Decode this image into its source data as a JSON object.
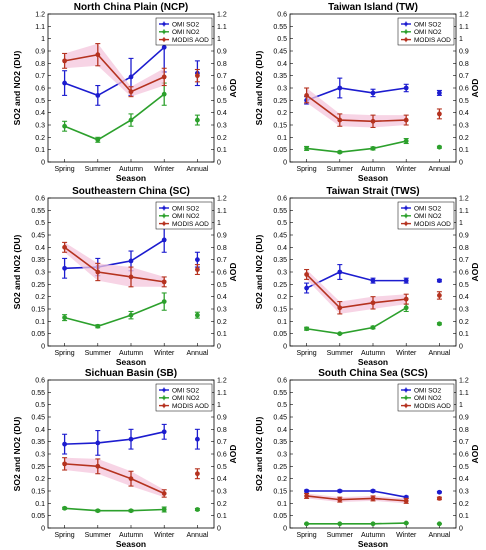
{
  "colors": {
    "so2": "#1c1ccf",
    "no2": "#2ca02c",
    "aod": "#b5321f",
    "aod_shade": "#f4c6dc"
  },
  "chart_data": [
    {
      "type": "line",
      "title": "North China Plain (NCP)",
      "xlabel": "Season",
      "ylabel": "SO2 and NO2 (DU)",
      "y2label": "AOD",
      "categories": [
        "Spring",
        "Summer",
        "Autumn",
        "Winter",
        "Annual"
      ],
      "ylim": [
        0,
        1.2
      ],
      "yticks": [
        "0",
        "0.1",
        "0.2",
        "0.3",
        "0.4",
        "0.5",
        "0.6",
        "0.7",
        "0.8",
        "0.9",
        "1",
        "1.1",
        "1.2"
      ],
      "y2lim": [
        0,
        1.2
      ],
      "y2ticks": [
        "0",
        "0.1",
        "0.2",
        "0.3",
        "0.4",
        "0.5",
        "0.6",
        "0.7",
        "0.8",
        "0.9",
        "1",
        "1.1",
        "1.2"
      ],
      "legend_position": "top-right",
      "series": [
        {
          "name": "OMI SO2",
          "color_key": "so2",
          "axis": "left",
          "values": [
            0.64,
            0.54,
            0.69,
            0.93,
            0.72
          ],
          "errors": [
            0.1,
            0.08,
            0.15,
            0.2,
            0.1
          ]
        },
        {
          "name": "OMI NO2",
          "color_key": "no2",
          "axis": "left",
          "values": [
            0.29,
            0.18,
            0.34,
            0.55,
            0.34
          ],
          "errors": [
            0.04,
            0.02,
            0.05,
            0.09,
            0.04
          ]
        },
        {
          "name": "MODIS AOD",
          "color_key": "aod",
          "axis": "right",
          "values": [
            0.82,
            0.87,
            0.57,
            0.69,
            0.7
          ],
          "errors": [
            0.06,
            0.09,
            0.04,
            0.07,
            0.05
          ]
        }
      ]
    },
    {
      "type": "line",
      "title": "Taiwan Island (TW)",
      "xlabel": "Season",
      "ylabel": "SO2 and NO2 (DU)",
      "y2label": "AOD",
      "categories": [
        "Spring",
        "Summer",
        "Autumn",
        "Winter",
        "Annual"
      ],
      "ylim": [
        0,
        0.6
      ],
      "yticks": [
        "0",
        "0.05",
        "0.1",
        "0.15",
        "0.2",
        "0.25",
        "0.3",
        "0.35",
        "0.4",
        "0.45",
        "0.5",
        "0.55",
        "0.6"
      ],
      "y2lim": [
        0,
        1.2
      ],
      "y2ticks": [
        "0",
        "0.1",
        "0.2",
        "0.3",
        "0.4",
        "0.5",
        "0.6",
        "0.7",
        "0.8",
        "0.9",
        "1",
        "1.1",
        "1.2"
      ],
      "legend_position": "top-right",
      "series": [
        {
          "name": "OMI SO2",
          "color_key": "so2",
          "axis": "left",
          "values": [
            0.25,
            0.3,
            0.28,
            0.3,
            0.28
          ],
          "errors": [
            0.015,
            0.04,
            0.015,
            0.015,
            0.01
          ]
        },
        {
          "name": "OMI NO2",
          "color_key": "no2",
          "axis": "left",
          "values": [
            0.055,
            0.04,
            0.055,
            0.085,
            0.06
          ],
          "errors": [
            0.008,
            0.004,
            0.006,
            0.01,
            0.004
          ]
        },
        {
          "name": "MODIS AOD",
          "color_key": "aod",
          "axis": "right",
          "values": [
            0.54,
            0.34,
            0.33,
            0.34,
            0.39
          ],
          "errors": [
            0.06,
            0.05,
            0.05,
            0.04,
            0.04
          ]
        }
      ]
    },
    {
      "type": "line",
      "title": "Southeastern China (SC)",
      "xlabel": "Season",
      "ylabel": "SO2 and NO2 (DU)",
      "y2label": "AOD",
      "categories": [
        "Spring",
        "Summer",
        "Autumn",
        "Winter",
        "Annual"
      ],
      "ylim": [
        0,
        0.6
      ],
      "yticks": [
        "0",
        "0.05",
        "0.1",
        "0.15",
        "0.2",
        "0.25",
        "0.3",
        "0.35",
        "0.4",
        "0.45",
        "0.5",
        "0.55",
        "0.6"
      ],
      "y2lim": [
        0,
        1.2
      ],
      "y2ticks": [
        "0",
        "0.1",
        "0.2",
        "0.3",
        "0.4",
        "0.5",
        "0.6",
        "0.7",
        "0.8",
        "0.9",
        "1",
        "1.1",
        "1.2"
      ],
      "legend_position": "top-right",
      "series": [
        {
          "name": "OMI SO2",
          "color_key": "so2",
          "axis": "left",
          "values": [
            0.315,
            0.32,
            0.345,
            0.43,
            0.35
          ],
          "errors": [
            0.04,
            0.035,
            0.04,
            0.05,
            0.03
          ]
        },
        {
          "name": "OMI NO2",
          "color_key": "no2",
          "axis": "left",
          "values": [
            0.115,
            0.08,
            0.125,
            0.18,
            0.125
          ],
          "errors": [
            0.012,
            0.006,
            0.015,
            0.035,
            0.012
          ]
        },
        {
          "name": "MODIS AOD",
          "color_key": "aod",
          "axis": "right",
          "values": [
            0.8,
            0.6,
            0.56,
            0.52,
            0.62
          ],
          "errors": [
            0.04,
            0.07,
            0.08,
            0.04,
            0.04
          ]
        }
      ]
    },
    {
      "type": "line",
      "title": "Taiwan Strait (TWS)",
      "xlabel": "Season",
      "ylabel": "SO2 and NO2 (DU)",
      "y2label": "AOD",
      "categories": [
        "Spring",
        "Summer",
        "Autumn",
        "Winter",
        "Annual"
      ],
      "ylim": [
        0,
        0.6
      ],
      "yticks": [
        "0",
        "0.05",
        "0.1",
        "0.15",
        "0.2",
        "0.25",
        "0.3",
        "0.35",
        "0.4",
        "0.45",
        "0.5",
        "0.55",
        "0.6"
      ],
      "y2lim": [
        0,
        1.2
      ],
      "y2ticks": [
        "0",
        "0.1",
        "0.2",
        "0.3",
        "0.4",
        "0.5",
        "0.6",
        "0.7",
        "0.8",
        "0.9",
        "1",
        "1.1",
        "1.2"
      ],
      "legend_position": "top-right",
      "series": [
        {
          "name": "OMI SO2",
          "color_key": "so2",
          "axis": "left",
          "values": [
            0.235,
            0.3,
            0.265,
            0.265,
            0.265
          ],
          "errors": [
            0.02,
            0.03,
            0.01,
            0.01,
            0.005
          ]
        },
        {
          "name": "OMI NO2",
          "color_key": "no2",
          "axis": "left",
          "values": [
            0.07,
            0.05,
            0.075,
            0.155,
            0.09
          ],
          "errors": [
            0.006,
            0.003,
            0.005,
            0.015,
            0.004
          ]
        },
        {
          "name": "MODIS AOD",
          "color_key": "aod",
          "axis": "right",
          "values": [
            0.58,
            0.31,
            0.35,
            0.38,
            0.41
          ],
          "errors": [
            0.04,
            0.05,
            0.05,
            0.04,
            0.03
          ]
        }
      ]
    },
    {
      "type": "line",
      "title": "Sichuan Basin (SB)",
      "xlabel": "Season",
      "ylabel": "SO2 and NO2 (DU)",
      "y2label": "AOD",
      "categories": [
        "Spring",
        "Summer",
        "Autumn",
        "Winter",
        "Annual"
      ],
      "ylim": [
        0,
        0.6
      ],
      "yticks": [
        "0",
        "0.05",
        "0.1",
        "0.15",
        "0.2",
        "0.25",
        "0.3",
        "0.35",
        "0.4",
        "0.45",
        "0.5",
        "0.55",
        "0.6"
      ],
      "y2lim": [
        0,
        1.2
      ],
      "y2ticks": [
        "0",
        "0.1",
        "0.2",
        "0.3",
        "0.4",
        "0.5",
        "0.6",
        "0.7",
        "0.8",
        "0.9",
        "1",
        "1.1",
        "1.2"
      ],
      "legend_position": "top-right",
      "series": [
        {
          "name": "OMI SO2",
          "color_key": "so2",
          "axis": "left",
          "values": [
            0.34,
            0.345,
            0.36,
            0.39,
            0.36
          ],
          "errors": [
            0.04,
            0.05,
            0.04,
            0.03,
            0.04
          ]
        },
        {
          "name": "OMI NO2",
          "color_key": "no2",
          "axis": "left",
          "values": [
            0.08,
            0.07,
            0.07,
            0.075,
            0.075
          ],
          "errors": [
            0.004,
            0.004,
            0.004,
            0.01,
            0.004
          ]
        },
        {
          "name": "MODIS AOD",
          "color_key": "aod",
          "axis": "right",
          "values": [
            0.52,
            0.5,
            0.4,
            0.28,
            0.44
          ],
          "errors": [
            0.05,
            0.06,
            0.06,
            0.03,
            0.04
          ]
        }
      ]
    },
    {
      "type": "line",
      "title": "South China Sea (SCS)",
      "xlabel": "Season",
      "ylabel": "SO2 and NO2 (DU)",
      "y2label": "AOD",
      "categories": [
        "Spring",
        "Summer",
        "Autumn",
        "Winter",
        "Annual"
      ],
      "ylim": [
        0,
        0.6
      ],
      "yticks": [
        "0",
        "0.05",
        "0.1",
        "0.15",
        "0.2",
        "0.25",
        "0.3",
        "0.35",
        "0.4",
        "0.45",
        "0.5",
        "0.55",
        "0.6"
      ],
      "y2lim": [
        0,
        1.2
      ],
      "y2ticks": [
        "0",
        "0.1",
        "0.2",
        "0.3",
        "0.4",
        "0.5",
        "0.6",
        "0.7",
        "0.8",
        "0.9",
        "1",
        "1.1",
        "1.2"
      ],
      "legend_position": "top-right",
      "series": [
        {
          "name": "OMI SO2",
          "color_key": "so2",
          "axis": "left",
          "values": [
            0.15,
            0.15,
            0.15,
            0.125,
            0.145
          ],
          "errors": [
            0.004,
            0.004,
            0.004,
            0.004,
            0.003
          ]
        },
        {
          "name": "OMI NO2",
          "color_key": "no2",
          "axis": "left",
          "values": [
            0.017,
            0.017,
            0.017,
            0.02,
            0.017
          ],
          "errors": [
            0.002,
            0.001,
            0.001,
            0.002,
            0.001
          ]
        },
        {
          "name": "MODIS AOD",
          "color_key": "aod",
          "axis": "right",
          "values": [
            0.26,
            0.23,
            0.24,
            0.22,
            0.24
          ],
          "errors": [
            0.02,
            0.02,
            0.02,
            0.02,
            0.01
          ]
        }
      ]
    }
  ]
}
